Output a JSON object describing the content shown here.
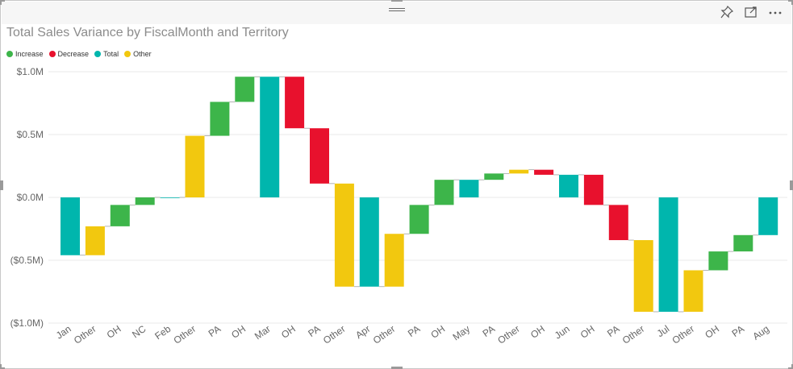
{
  "visual": {
    "title": "Total Sales Variance by FiscalMonth and Territory",
    "icons": [
      "grip-handle-icon",
      "pin-icon",
      "focus-mode-icon",
      "more-options-icon"
    ]
  },
  "legend": [
    {
      "label": "Increase",
      "color": "#3db54a"
    },
    {
      "label": "Decrease",
      "color": "#e8112d"
    },
    {
      "label": "Total",
      "color": "#00b6ad"
    },
    {
      "label": "Other",
      "color": "#f2c80f"
    }
  ],
  "chart_data": {
    "type": "waterfall",
    "title": "Total Sales Variance by FiscalMonth and Territory",
    "xlabel": "",
    "ylabel": "",
    "ylim": [
      -1.0,
      1.0
    ],
    "y_unit": "$M",
    "y_ticks": [
      {
        "value": 1.0,
        "label": "$1.0M"
      },
      {
        "value": 0.5,
        "label": "$0.5M"
      },
      {
        "value": 0.0,
        "label": "$0.0M"
      },
      {
        "value": -0.5,
        "label": "($0.5M)"
      },
      {
        "value": -1.0,
        "label": "($1.0M)"
      }
    ],
    "grid": true,
    "legend_position": "top-left",
    "colors": {
      "Increase": "#3db54a",
      "Decrease": "#e8112d",
      "Total": "#00b6ad",
      "Other": "#f2c80f"
    },
    "bars": [
      {
        "category": "Jan",
        "kind": "Total",
        "start": 0.0,
        "end": -0.46
      },
      {
        "category": "Other",
        "kind": "Other",
        "start": -0.46,
        "end": -0.23
      },
      {
        "category": "OH",
        "kind": "Increase",
        "start": -0.23,
        "end": -0.06
      },
      {
        "category": "NC",
        "kind": "Increase",
        "start": -0.06,
        "end": 0.0
      },
      {
        "category": "Feb",
        "kind": "Total",
        "start": 0.0,
        "end": 0.0
      },
      {
        "category": "Other",
        "kind": "Other",
        "start": 0.0,
        "end": 0.49
      },
      {
        "category": "PA",
        "kind": "Increase",
        "start": 0.49,
        "end": 0.76
      },
      {
        "category": "OH",
        "kind": "Increase",
        "start": 0.76,
        "end": 0.96
      },
      {
        "category": "Mar",
        "kind": "Total",
        "start": 0.0,
        "end": 0.96
      },
      {
        "category": "OH",
        "kind": "Decrease",
        "start": 0.96,
        "end": 0.55
      },
      {
        "category": "PA",
        "kind": "Decrease",
        "start": 0.55,
        "end": 0.11
      },
      {
        "category": "Other",
        "kind": "Other",
        "start": 0.11,
        "end": -0.71
      },
      {
        "category": "Apr",
        "kind": "Total",
        "start": 0.0,
        "end": -0.71
      },
      {
        "category": "Other",
        "kind": "Other",
        "start": -0.71,
        "end": -0.29
      },
      {
        "category": "PA",
        "kind": "Increase",
        "start": -0.29,
        "end": -0.06
      },
      {
        "category": "OH",
        "kind": "Increase",
        "start": -0.06,
        "end": 0.14
      },
      {
        "category": "May",
        "kind": "Total",
        "start": 0.0,
        "end": 0.14
      },
      {
        "category": "PA",
        "kind": "Increase",
        "start": 0.14,
        "end": 0.19
      },
      {
        "category": "Other",
        "kind": "Other",
        "start": 0.19,
        "end": 0.22
      },
      {
        "category": "OH",
        "kind": "Decrease",
        "start": 0.22,
        "end": 0.18
      },
      {
        "category": "Jun",
        "kind": "Total",
        "start": 0.0,
        "end": 0.18
      },
      {
        "category": "OH",
        "kind": "Decrease",
        "start": 0.18,
        "end": -0.06
      },
      {
        "category": "PA",
        "kind": "Decrease",
        "start": -0.06,
        "end": -0.34
      },
      {
        "category": "Other",
        "kind": "Other",
        "start": -0.34,
        "end": -0.91
      },
      {
        "category": "Jul",
        "kind": "Total",
        "start": 0.0,
        "end": -0.91
      },
      {
        "category": "Other",
        "kind": "Other",
        "start": -0.91,
        "end": -0.58
      },
      {
        "category": "OH",
        "kind": "Increase",
        "start": -0.58,
        "end": -0.43
      },
      {
        "category": "PA",
        "kind": "Increase",
        "start": -0.43,
        "end": -0.3
      },
      {
        "category": "Aug",
        "kind": "Total",
        "start": 0.0,
        "end": -0.3
      }
    ]
  }
}
